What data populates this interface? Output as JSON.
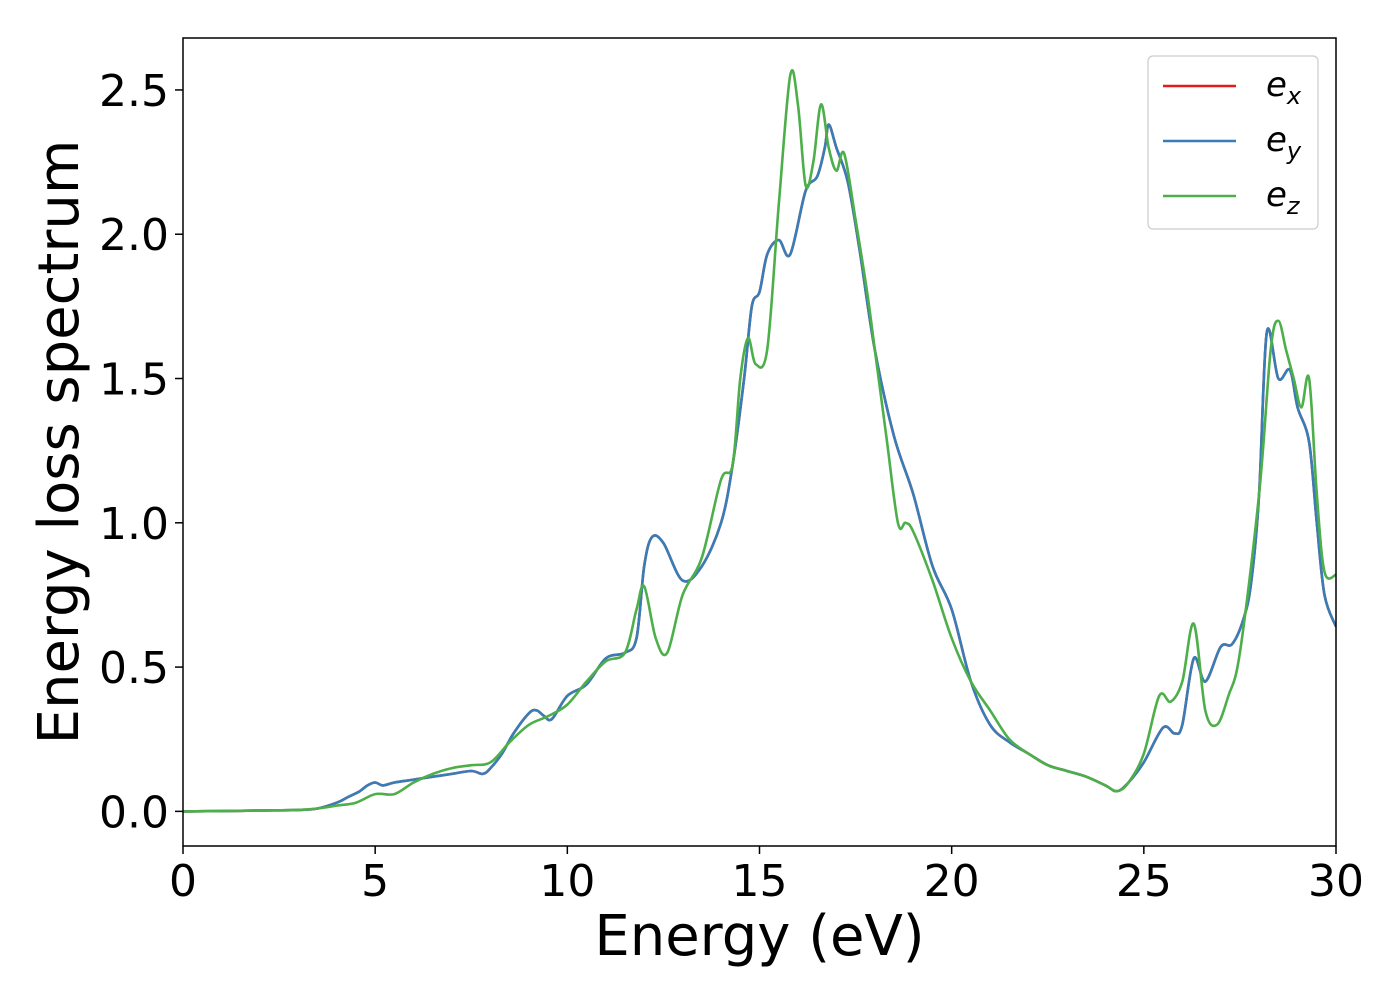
{
  "chart_data": {
    "type": "line",
    "xlabel": "Energy (eV)",
    "ylabel": "Energy loss spectrum",
    "xlim": [
      0,
      30
    ],
    "ylim": [
      -0.12,
      2.68
    ],
    "xticks": [
      0,
      5,
      10,
      15,
      20,
      25,
      30
    ],
    "xtick_labels": [
      "0",
      "5",
      "10",
      "15",
      "20",
      "25",
      "30"
    ],
    "yticks": [
      0.0,
      0.5,
      1.0,
      1.5,
      2.0,
      2.5
    ],
    "ytick_labels": [
      "0.0",
      "0.5",
      "1.0",
      "1.5",
      "2.0",
      "2.5"
    ],
    "grid": false,
    "legend_position": "top-right",
    "series": [
      {
        "name": "e",
        "subscript": "x",
        "color": "#e41a1c",
        "x": [
          0,
          1,
          2,
          3,
          3.5,
          4,
          4.3,
          4.6,
          4.8,
          5,
          5.2,
          5.5,
          6,
          6.5,
          7,
          7.5,
          7.8,
          8,
          8.3,
          8.6,
          9,
          9.2,
          9.4,
          9.6,
          10,
          10.5,
          11,
          11.5,
          11.8,
          12,
          12.2,
          12.5,
          13,
          13.5,
          14,
          14.3,
          14.6,
          14.8,
          15,
          15.2,
          15.5,
          15.8,
          16.2,
          16.5,
          16.7,
          16.8,
          17,
          17.3,
          17.6,
          18,
          18.5,
          19,
          19.5,
          20,
          20.5,
          21,
          21.5,
          22,
          22.5,
          23,
          23.5,
          24,
          24.3,
          24.6,
          25,
          25.5,
          25.8,
          26,
          26.3,
          26.6,
          27,
          27.3,
          27.6,
          27.8,
          28,
          28.2,
          28.5,
          28.8,
          29,
          29.3,
          29.5,
          29.7,
          30
        ],
        "y": [
          0,
          0.001,
          0.003,
          0.005,
          0.01,
          0.03,
          0.05,
          0.07,
          0.09,
          0.1,
          0.09,
          0.1,
          0.11,
          0.12,
          0.13,
          0.14,
          0.13,
          0.15,
          0.2,
          0.27,
          0.34,
          0.35,
          0.33,
          0.32,
          0.4,
          0.44,
          0.53,
          0.55,
          0.6,
          0.85,
          0.95,
          0.93,
          0.8,
          0.85,
          1.0,
          1.2,
          1.5,
          1.75,
          1.8,
          1.93,
          1.98,
          1.93,
          2.15,
          2.2,
          2.3,
          2.38,
          2.3,
          2.18,
          1.95,
          1.6,
          1.3,
          1.1,
          0.85,
          0.7,
          0.45,
          0.3,
          0.24,
          0.2,
          0.16,
          0.14,
          0.12,
          0.09,
          0.07,
          0.1,
          0.17,
          0.29,
          0.27,
          0.3,
          0.53,
          0.45,
          0.57,
          0.58,
          0.67,
          0.8,
          1.1,
          1.66,
          1.5,
          1.53,
          1.4,
          1.28,
          1.0,
          0.75,
          0.64
        ]
      },
      {
        "name": "e",
        "subscript": "y",
        "color": "#377eb8",
        "x": [
          0,
          1,
          2,
          3,
          3.5,
          4,
          4.3,
          4.6,
          4.8,
          5,
          5.2,
          5.5,
          6,
          6.5,
          7,
          7.5,
          7.8,
          8,
          8.3,
          8.6,
          9,
          9.2,
          9.4,
          9.6,
          10,
          10.5,
          11,
          11.5,
          11.8,
          12,
          12.2,
          12.5,
          13,
          13.5,
          14,
          14.3,
          14.6,
          14.8,
          15,
          15.2,
          15.5,
          15.8,
          16.2,
          16.5,
          16.7,
          16.8,
          17,
          17.3,
          17.6,
          18,
          18.5,
          19,
          19.5,
          20,
          20.5,
          21,
          21.5,
          22,
          22.5,
          23,
          23.5,
          24,
          24.3,
          24.6,
          25,
          25.5,
          25.8,
          26,
          26.3,
          26.6,
          27,
          27.3,
          27.6,
          27.8,
          28,
          28.2,
          28.5,
          28.8,
          29,
          29.3,
          29.5,
          29.7,
          30
        ],
        "y": [
          0,
          0.001,
          0.003,
          0.005,
          0.01,
          0.03,
          0.05,
          0.07,
          0.09,
          0.1,
          0.09,
          0.1,
          0.11,
          0.12,
          0.13,
          0.14,
          0.13,
          0.15,
          0.2,
          0.27,
          0.34,
          0.35,
          0.33,
          0.32,
          0.4,
          0.44,
          0.53,
          0.55,
          0.6,
          0.85,
          0.95,
          0.93,
          0.8,
          0.85,
          1.0,
          1.2,
          1.5,
          1.75,
          1.8,
          1.93,
          1.98,
          1.93,
          2.15,
          2.2,
          2.3,
          2.38,
          2.3,
          2.18,
          1.95,
          1.6,
          1.3,
          1.1,
          0.85,
          0.7,
          0.45,
          0.3,
          0.24,
          0.2,
          0.16,
          0.14,
          0.12,
          0.09,
          0.07,
          0.1,
          0.17,
          0.29,
          0.27,
          0.3,
          0.53,
          0.45,
          0.57,
          0.58,
          0.67,
          0.8,
          1.1,
          1.66,
          1.5,
          1.53,
          1.4,
          1.28,
          1.0,
          0.75,
          0.64
        ]
      },
      {
        "name": "e",
        "subscript": "z",
        "color": "#4daf4a",
        "x": [
          0,
          1,
          2,
          3,
          3.5,
          4,
          4.5,
          5,
          5.5,
          6,
          6.5,
          7,
          7.5,
          8,
          8.5,
          9,
          9.5,
          10,
          10.5,
          11,
          11.5,
          11.8,
          12,
          12.3,
          12.6,
          13,
          13.5,
          14,
          14.3,
          14.5,
          14.7,
          14.9,
          15.2,
          15.5,
          15.8,
          16,
          16.2,
          16.4,
          16.6,
          16.8,
          17,
          17.2,
          17.5,
          17.8,
          18,
          18.3,
          18.6,
          18.8,
          19,
          19.5,
          20,
          20.5,
          21,
          21.5,
          22,
          22.5,
          23,
          23.5,
          24,
          24.3,
          24.6,
          25,
          25.4,
          25.7,
          26,
          26.3,
          26.6,
          26.9,
          27.2,
          27.5,
          28,
          28.3,
          28.5,
          28.7,
          28.9,
          29.1,
          29.3,
          29.5,
          29.7,
          30
        ],
        "y": [
          0,
          0.001,
          0.003,
          0.005,
          0.01,
          0.02,
          0.03,
          0.06,
          0.06,
          0.1,
          0.13,
          0.15,
          0.16,
          0.17,
          0.24,
          0.3,
          0.33,
          0.37,
          0.45,
          0.52,
          0.55,
          0.7,
          0.78,
          0.6,
          0.55,
          0.75,
          0.88,
          1.15,
          1.2,
          1.5,
          1.64,
          1.55,
          1.6,
          2.1,
          2.55,
          2.45,
          2.17,
          2.25,
          2.45,
          2.3,
          2.22,
          2.28,
          2.05,
          1.8,
          1.6,
          1.3,
          1.0,
          1.0,
          0.97,
          0.8,
          0.6,
          0.45,
          0.35,
          0.25,
          0.2,
          0.16,
          0.14,
          0.12,
          0.09,
          0.07,
          0.1,
          0.2,
          0.4,
          0.38,
          0.45,
          0.65,
          0.35,
          0.3,
          0.4,
          0.55,
          1.1,
          1.6,
          1.7,
          1.6,
          1.5,
          1.4,
          1.5,
          1.1,
          0.83,
          0.82
        ]
      }
    ]
  }
}
